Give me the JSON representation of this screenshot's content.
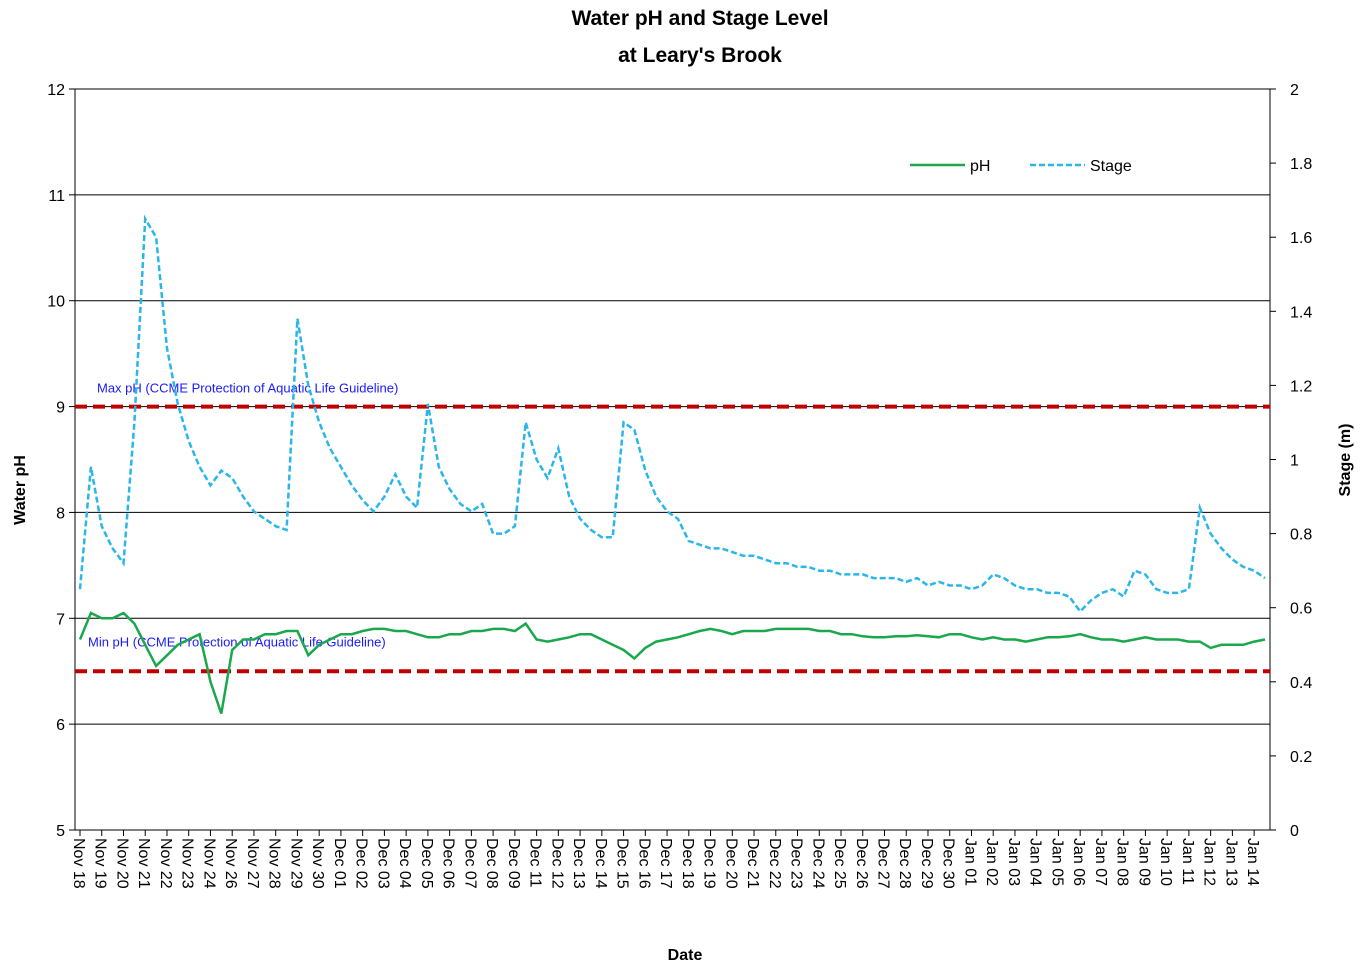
{
  "chart_data": {
    "type": "line",
    "title": [
      "Water pH and Stage Level",
      "at Leary's Brook"
    ],
    "x_label": "Date",
    "y_label": "Water pH",
    "y2_label": "Stage (m)",
    "categories": [
      "Nov 18",
      null,
      "Nov 19",
      null,
      "Nov 20",
      null,
      "Nov 21",
      null,
      "Nov 22",
      null,
      "Nov 23",
      null,
      "Nov 24",
      null,
      "Nov 26",
      null,
      "Nov 27",
      null,
      "Nov 28",
      null,
      "Nov 29",
      null,
      "Nov 30",
      null,
      "Dec 01",
      null,
      "Dec 02",
      null,
      "Dec 03",
      null,
      "Dec 04",
      null,
      "Dec 05",
      null,
      "Dec 06",
      null,
      "Dec 07",
      null,
      "Dec 08",
      null,
      "Dec 09",
      null,
      "Dec 11",
      null,
      "Dec 12",
      null,
      "Dec 13",
      null,
      "Dec 14",
      null,
      "Dec 15",
      null,
      "Dec 16",
      null,
      "Dec 17",
      null,
      "Dec 18",
      null,
      "Dec 19",
      null,
      "Dec 20",
      null,
      "Dec 21",
      null,
      "Dec 22",
      null,
      "Dec 23",
      null,
      "Dec 24",
      null,
      "Dec 25",
      null,
      "Dec 26",
      null,
      "Dec 27",
      null,
      "Dec 28",
      null,
      "Dec 29",
      null,
      "Dec 30",
      null,
      "Jan 01",
      null,
      "Jan 02",
      null,
      "Jan 03",
      null,
      "Jan 04",
      null,
      "Jan 05",
      null,
      "Jan 06",
      null,
      "Jan 07",
      null,
      "Jan 08",
      null,
      "Jan 09",
      null,
      "Jan 10",
      null,
      "Jan 11",
      null,
      "Jan 12",
      null,
      "Jan 13",
      null,
      "Jan 14",
      null
    ],
    "series": [
      {
        "name": "pH",
        "color": "#1aa84c",
        "dashed": false,
        "values": [
          6.8,
          7.05,
          7.0,
          7.0,
          7.05,
          6.95,
          6.75,
          6.55,
          6.65,
          6.75,
          6.8,
          6.85,
          6.4,
          6.1,
          6.7,
          6.8,
          6.8,
          6.85,
          6.85,
          6.88,
          6.88,
          6.65,
          6.75,
          6.8,
          6.85,
          6.85,
          6.88,
          6.9,
          6.9,
          6.88,
          6.88,
          6.85,
          6.82,
          6.82,
          6.85,
          6.85,
          6.88,
          6.88,
          6.9,
          6.9,
          6.88,
          6.95,
          6.8,
          6.78,
          6.8,
          6.82,
          6.85,
          6.85,
          6.8,
          6.75,
          6.7,
          6.62,
          6.72,
          6.78,
          6.8,
          6.82,
          6.85,
          6.88,
          6.9,
          6.88,
          6.85,
          6.88,
          6.88,
          6.88,
          6.9,
          6.9,
          6.9,
          6.9,
          6.88,
          6.88,
          6.85,
          6.85,
          6.83,
          6.82,
          6.82,
          6.83,
          6.83,
          6.84,
          6.83,
          6.82,
          6.85,
          6.85,
          6.82,
          6.8,
          6.82,
          6.8,
          6.8,
          6.78,
          6.8,
          6.82,
          6.82,
          6.83,
          6.85,
          6.82,
          6.8,
          6.8,
          6.78,
          6.8,
          6.82,
          6.8,
          6.8,
          6.8,
          6.78,
          6.78,
          6.72,
          6.75,
          6.75,
          6.75,
          6.78,
          6.8
        ]
      },
      {
        "name": "Stage",
        "color": "#29b6e8",
        "dashed": true,
        "axis": "y2",
        "values": [
          0.65,
          0.98,
          0.82,
          0.76,
          0.72,
          1.1,
          1.65,
          1.6,
          1.3,
          1.15,
          1.05,
          0.98,
          0.93,
          0.97,
          0.95,
          0.9,
          0.86,
          0.84,
          0.82,
          0.81,
          1.38,
          1.2,
          1.1,
          1.03,
          0.98,
          0.93,
          0.89,
          0.86,
          0.9,
          0.96,
          0.9,
          0.87,
          1.15,
          0.98,
          0.92,
          0.88,
          0.86,
          0.88,
          0.8,
          0.8,
          0.82,
          1.1,
          1.0,
          0.95,
          1.03,
          0.9,
          0.84,
          0.81,
          0.79,
          0.79,
          1.1,
          1.08,
          0.97,
          0.9,
          0.86,
          0.84,
          0.78,
          0.77,
          0.76,
          0.76,
          0.75,
          0.74,
          0.74,
          0.73,
          0.72,
          0.72,
          0.71,
          0.71,
          0.7,
          0.7,
          0.69,
          0.69,
          0.69,
          0.68,
          0.68,
          0.68,
          0.67,
          0.68,
          0.66,
          0.67,
          0.66,
          0.66,
          0.65,
          0.66,
          0.69,
          0.68,
          0.66,
          0.65,
          0.65,
          0.64,
          0.64,
          0.63,
          0.59,
          0.62,
          0.64,
          0.65,
          0.63,
          0.7,
          0.69,
          0.65,
          0.64,
          0.64,
          0.65,
          0.87,
          0.8,
          0.76,
          0.73,
          0.71,
          0.7,
          0.68
        ]
      }
    ],
    "reference_lines": [
      {
        "value": 9,
        "label": "Max pH (CCME  Protection of Aquatic Life Guideline)",
        "color": "#c00000"
      },
      {
        "value": 6.5,
        "label": "Min pH (CCME  Protection of Aquatic Life Guideline)",
        "color": "#c00000"
      }
    ],
    "ylim": [
      5,
      12
    ],
    "yticks": [
      5,
      6,
      7,
      8,
      9,
      10,
      11,
      12
    ],
    "y2lim": [
      0,
      2
    ],
    "y2ticks": [
      0,
      0.2,
      0.4,
      0.6,
      0.8,
      1,
      1.2,
      1.4,
      1.6,
      1.8,
      2
    ],
    "grid": true,
    "legend": "top-right"
  }
}
